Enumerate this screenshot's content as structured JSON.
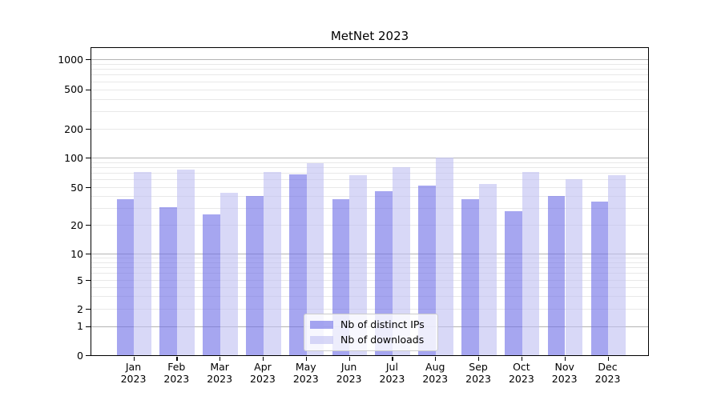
{
  "chart_data": {
    "type": "bar",
    "title": "MetNet 2023",
    "year_label": "2023",
    "categories": [
      "Jan",
      "Feb",
      "Mar",
      "Apr",
      "May",
      "Jun",
      "Jul",
      "Aug",
      "Sep",
      "Oct",
      "Nov",
      "Dec"
    ],
    "series": [
      {
        "name": "Nb of distinct IPs",
        "color": "#7070e7",
        "alpha": 0.62,
        "values": [
          37,
          31,
          26,
          40,
          68,
          37,
          45,
          52,
          37,
          28,
          40,
          35
        ]
      },
      {
        "name": "Nb of downloads",
        "color": "#c0c0f2",
        "alpha": 0.62,
        "values": [
          71,
          76,
          44,
          72,
          87,
          66,
          80,
          100,
          54,
          72,
          60,
          66
        ]
      }
    ],
    "yscale": "symlog",
    "yticks": [
      0,
      1,
      2,
      5,
      10,
      20,
      50,
      100,
      200,
      500,
      1000
    ],
    "ylim": [
      0,
      1300
    ],
    "xlabel": "",
    "ylabel": "",
    "grid": {
      "major": true,
      "minor": true
    },
    "legend_position": "lower center",
    "colors": {
      "major_grid": "#b4b4b4",
      "minor_grid": "#e8e8e8",
      "axis": "#000000",
      "background": "#ffffff"
    }
  }
}
